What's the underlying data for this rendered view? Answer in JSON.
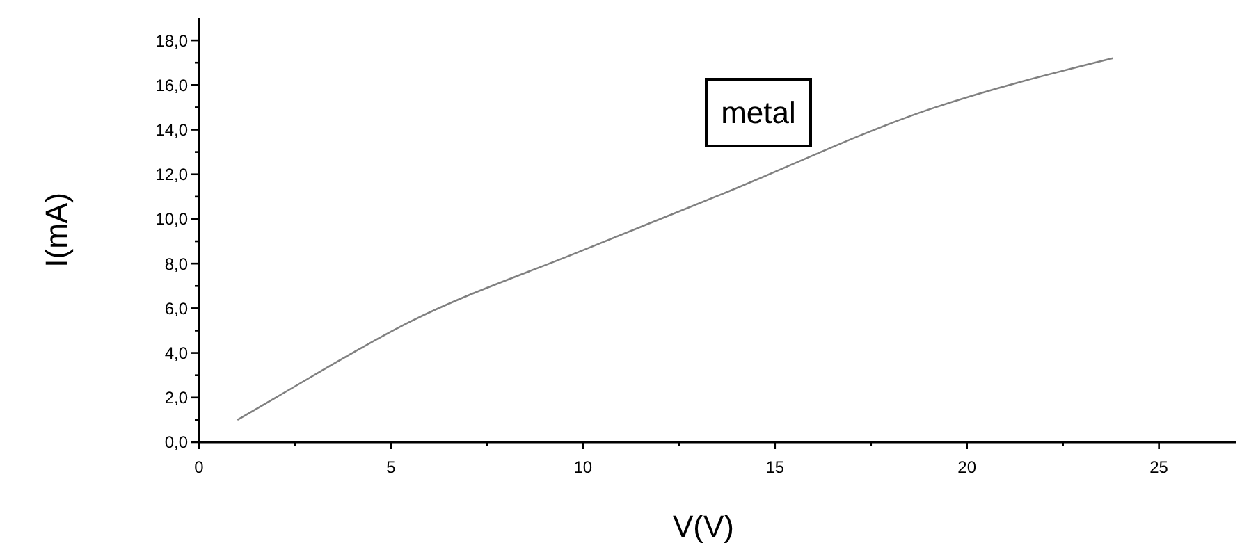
{
  "chart_data": {
    "type": "line",
    "xlabel": "V(V)",
    "ylabel": "I(mA)",
    "annotations": [
      "metal"
    ],
    "x": [
      1,
      2,
      5.5,
      10,
      13.6,
      19,
      23.8
    ],
    "series": [
      {
        "color": "#808080",
        "values": [
          1.0,
          2.0,
          5.4,
          8.6,
          11.1,
          14.9,
          17.2
        ]
      }
    ],
    "xlim": [
      0,
      27
    ],
    "ylim": [
      0,
      19
    ],
    "xticks": [
      0,
      {
        "value": 2.5,
        "label": null
      },
      5,
      {
        "value": 7.5,
        "label": null
      },
      10,
      {
        "value": 12.5,
        "label": null
      },
      15,
      {
        "value": 17.5,
        "label": null
      },
      20,
      {
        "value": 22.5,
        "label": null
      },
      25
    ],
    "yticks": [
      {
        "value": 0,
        "label": "0,0"
      },
      {
        "value": 1,
        "label": null
      },
      {
        "value": 2,
        "label": "2,0"
      },
      {
        "value": 3,
        "label": null
      },
      {
        "value": 4,
        "label": "4,0"
      },
      {
        "value": 5,
        "label": null
      },
      {
        "value": 6,
        "label": "6,0"
      },
      {
        "value": 7,
        "label": null
      },
      {
        "value": 8,
        "label": "8,0"
      },
      {
        "value": 9,
        "label": null
      },
      {
        "value": 10,
        "label": "10,0"
      },
      {
        "value": 11,
        "label": null
      },
      {
        "value": 12,
        "label": "12,0"
      },
      {
        "value": 13,
        "label": null
      },
      {
        "value": 14,
        "label": "14,0"
      },
      {
        "value": 15,
        "label": null
      },
      {
        "value": 16,
        "label": "16,0"
      },
      {
        "value": 17,
        "label": null
      },
      {
        "value": 18,
        "label": "18,0"
      }
    ],
    "grid": false,
    "marker": "none",
    "line_style": "solid"
  }
}
